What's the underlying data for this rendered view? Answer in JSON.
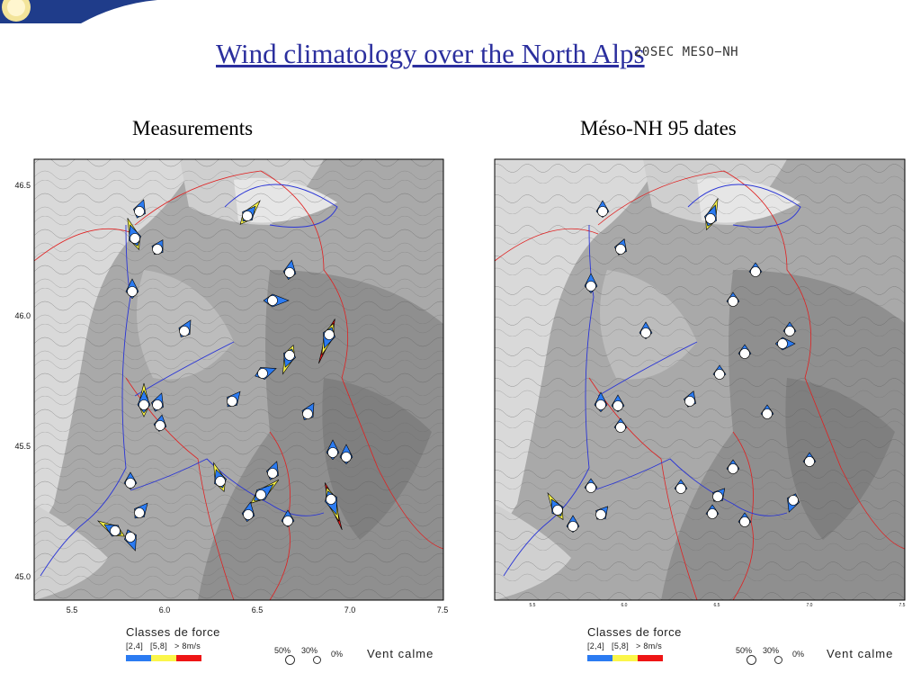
{
  "slide": {
    "title": "Wind climatology over the North Alps",
    "title_tag": "20SEC MESO−NH"
  },
  "panels": [
    {
      "title": "Measurements",
      "lat_ticks": [
        "46.5",
        "46.0",
        "45.5",
        "45.0"
      ],
      "lon_ticks": [
        "5.5",
        "6.0",
        "6.5",
        "7.0",
        "7.5"
      ],
      "legend": {
        "title": "Classes de force",
        "categories": [
          "[2,4]",
          "[5,8]",
          "> 8m/s"
        ],
        "colors": [
          "#2b7bf2",
          "#fbf64a",
          "#ee1515"
        ],
        "calm_pcts": [
          "50%",
          "30%",
          "0%"
        ],
        "calm_label": "Vent calme"
      }
    },
    {
      "title": "Méso-NH 95 dates",
      "lat_ticks": [],
      "lon_ticks": [
        "5.5",
        "6.0",
        "6.5",
        "7.0",
        "7.5"
      ],
      "legend": {
        "title": "Classes de force",
        "categories": [
          "[2,4]",
          "[5,8]",
          "> 8m/s"
        ],
        "colors": [
          "#2b7bf2",
          "#fbf64a",
          "#ee1515"
        ],
        "calm_pcts": [
          "50%",
          "30%",
          "0%"
        ],
        "calm_label": "Vent calme"
      }
    }
  ],
  "colors": {
    "title": "#2b2f9e",
    "terrain_light": "#d9d9d9",
    "terrain_mid": "#b3b3b3",
    "terrain_dark": "#8f8f8f",
    "border_line": "#e02020",
    "river_line": "#2a35d6"
  }
}
